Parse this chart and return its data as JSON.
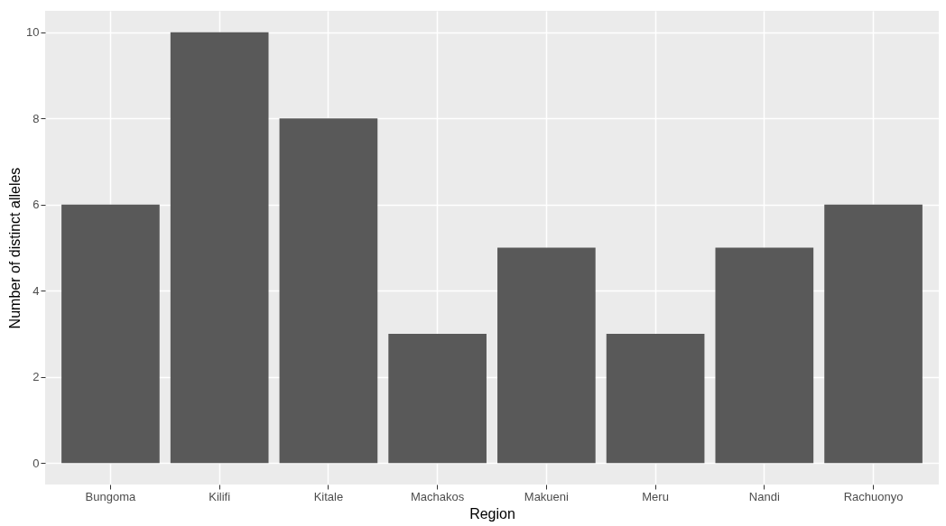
{
  "chart_data": {
    "type": "bar",
    "xlabel": "Region",
    "ylabel": "Number of distinct alleles",
    "categories": [
      "Bungoma",
      "Kilifi",
      "Kitale",
      "Machakos",
      "Makueni",
      "Meru",
      "Nandi",
      "Rachuonyo"
    ],
    "values": [
      6,
      10,
      8,
      3,
      5,
      3,
      5,
      6
    ],
    "color": "#595959",
    "ylim": [
      -0.5,
      10.5
    ],
    "yticks": [
      0,
      2,
      4,
      6,
      8,
      10
    ],
    "grid": true
  }
}
